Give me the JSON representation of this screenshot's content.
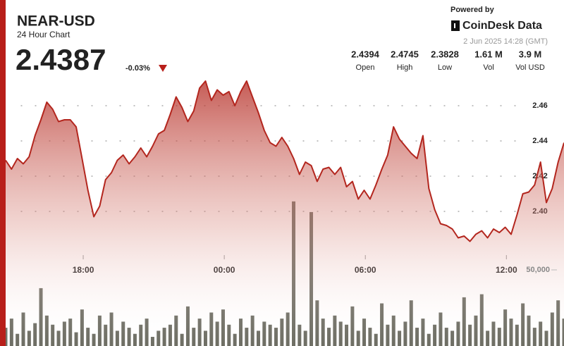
{
  "header": {
    "title": "NEAR-USD",
    "subtitle": "24 Hour Chart",
    "price": "2.4387",
    "change": "-0.03%",
    "powered": "Powered by",
    "brand": "CoinDesk Data",
    "date": "2 Jun 2025 14:28 (GMT)",
    "stats": [
      {
        "value": "2.4394",
        "label": "Open"
      },
      {
        "value": "2.4745",
        "label": "High"
      },
      {
        "value": "2.3828",
        "label": "Low"
      },
      {
        "value": "1.61 M",
        "label": "Vol"
      },
      {
        "value": "3.9 M",
        "label": "Vol USD"
      }
    ]
  },
  "chart_data": {
    "type": "line",
    "xlim": [
      0,
      95
    ],
    "xticks": [
      {
        "value": 13.2,
        "label": "18:00"
      },
      {
        "value": 37.2,
        "label": "00:00"
      },
      {
        "value": 61.2,
        "label": "06:00"
      },
      {
        "value": 85.2,
        "label": "12:00"
      }
    ],
    "ylim": [
      2.36,
      2.492
    ],
    "yticks": [
      {
        "value": 2.4,
        "label": "2.40"
      },
      {
        "value": 2.42,
        "label": "2.42"
      },
      {
        "value": 2.44,
        "label": "2.44"
      },
      {
        "value": 2.46,
        "label": "2.46"
      }
    ],
    "y2lim": [
      0,
      100000
    ],
    "y2ticks": [
      {
        "value": 50000,
        "label": "50,000"
      }
    ],
    "grid": true,
    "series": [
      {
        "color": "#b3261e",
        "values": [
          2.429,
          2.424,
          2.43,
          2.427,
          2.431,
          2.443,
          2.452,
          2.462,
          2.458,
          2.451,
          2.452,
          2.452,
          2.448,
          2.43,
          2.412,
          2.397,
          2.403,
          2.418,
          2.422,
          2.429,
          2.432,
          2.427,
          2.431,
          2.436,
          2.431,
          2.437,
          2.444,
          2.446,
          2.455,
          2.465,
          2.459,
          2.451,
          2.457,
          2.47,
          2.474,
          2.463,
          2.469,
          2.466,
          2.468,
          2.46,
          2.468,
          2.474,
          2.465,
          2.456,
          2.446,
          2.439,
          2.437,
          2.442,
          2.437,
          2.43,
          2.421,
          2.428,
          2.426,
          2.417,
          2.424,
          2.425,
          2.421,
          2.425,
          2.414,
          2.417,
          2.407,
          2.412,
          2.407,
          2.415,
          2.424,
          2.432,
          2.448,
          2.441,
          2.437,
          2.433,
          2.43,
          2.443,
          2.413,
          2.401,
          2.393,
          2.392,
          2.39,
          2.385,
          2.386,
          2.383,
          2.387,
          2.389,
          2.385,
          2.39,
          2.388,
          2.391,
          2.387,
          2.398,
          2.41,
          2.411,
          2.415,
          2.428,
          2.405,
          2.413,
          2.428,
          2.439
        ]
      },
      {
        "type": "bar",
        "axis": "y2",
        "color": "#6e6e64",
        "values": [
          12000,
          18000,
          8000,
          22000,
          10000,
          15000,
          38000,
          20000,
          14000,
          10000,
          16000,
          18000,
          9000,
          24000,
          12000,
          8000,
          20000,
          14000,
          22000,
          10000,
          16000,
          12000,
          8000,
          14000,
          18000,
          6000,
          10000,
          12000,
          14000,
          20000,
          8000,
          26000,
          12000,
          18000,
          10000,
          22000,
          16000,
          24000,
          14000,
          8000,
          18000,
          12000,
          20000,
          10000,
          16000,
          14000,
          12000,
          18000,
          22000,
          95000,
          14000,
          10000,
          88000,
          30000,
          18000,
          12000,
          20000,
          16000,
          14000,
          26000,
          10000,
          18000,
          12000,
          8000,
          28000,
          14000,
          20000,
          10000,
          16000,
          30000,
          12000,
          18000,
          8000,
          14000,
          22000,
          12000,
          10000,
          16000,
          32000,
          14000,
          20000,
          34000,
          10000,
          16000,
          12000,
          24000,
          18000,
          14000,
          28000,
          20000,
          12000,
          16000,
          10000,
          22000,
          30000,
          18000
        ]
      }
    ]
  }
}
